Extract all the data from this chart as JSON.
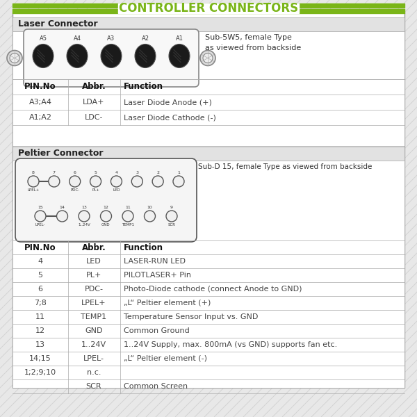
{
  "title": "CONTROLLER CONNECTORS",
  "title_color": "#6aaa00",
  "bg_color": "#e8e8e8",
  "laser_section_title": "Laser Connector",
  "laser_connector_desc": "Sub-5W5, female Type\nas viewed from backside",
  "laser_pins": [
    "A5",
    "A4",
    "A3",
    "A2",
    "A1"
  ],
  "laser_table_headers": [
    "PIN.No",
    "Abbr.",
    "Function"
  ],
  "laser_table_rows": [
    [
      "A3;A4",
      "LDA+",
      "Laser Diode Anode (+)"
    ],
    [
      "A1;A2",
      "LDC-",
      "Laser Diode Cathode (-)"
    ]
  ],
  "peltier_section_title": "Peltier Connector",
  "peltier_connector_desc": "Sub-D 15, female Type as viewed from backside",
  "peltier_top_pins": [
    "8",
    "7",
    "6",
    "5",
    "4",
    "3",
    "2",
    "1"
  ],
  "peltier_top_labels": [
    "LPEL+",
    "",
    "PDC-",
    "PL+",
    "LED",
    "",
    "",
    ""
  ],
  "peltier_bot_pins": [
    "15",
    "14",
    "13",
    "12",
    "11",
    "10",
    "9"
  ],
  "peltier_bot_labels": [
    "LPEL-",
    "",
    "1..24V",
    "GND",
    "TEMP1",
    "",
    "SCR"
  ],
  "peltier_table_headers": [
    "PIN.No",
    "Abbr.",
    "Function"
  ],
  "peltier_table_rows": [
    [
      "4",
      "LED",
      "LASER-RUN LED"
    ],
    [
      "5",
      "PL+",
      "PILOTLASER+ Pin"
    ],
    [
      "6",
      "PDC-",
      "Photo-Diode cathode (connect Anode to GND)"
    ],
    [
      "7;8",
      "LPEL+",
      "„L“ Peltier element (+)"
    ],
    [
      "11",
      "TEMP1",
      "Temperature Sensor Input vs. GND"
    ],
    [
      "12",
      "GND",
      "Common Ground"
    ],
    [
      "13",
      "1..24V",
      "1..24V Supply, max. 800mA (vs GND) supports fan etc."
    ],
    [
      "14;15",
      "LPEL-",
      "„L“ Peltier element (-)"
    ],
    [
      "1;2;9;10",
      "n.c.",
      ""
    ],
    [
      "",
      "SCR",
      "Common Screen"
    ]
  ],
  "green_color": "#7ab518",
  "border_color": "#aaaaaa",
  "section_hdr_bg": "#e2e2e2",
  "white": "#ffffff",
  "dark_text": "#222222",
  "mid_text": "#444444",
  "table_sep_color": "#cccccc"
}
